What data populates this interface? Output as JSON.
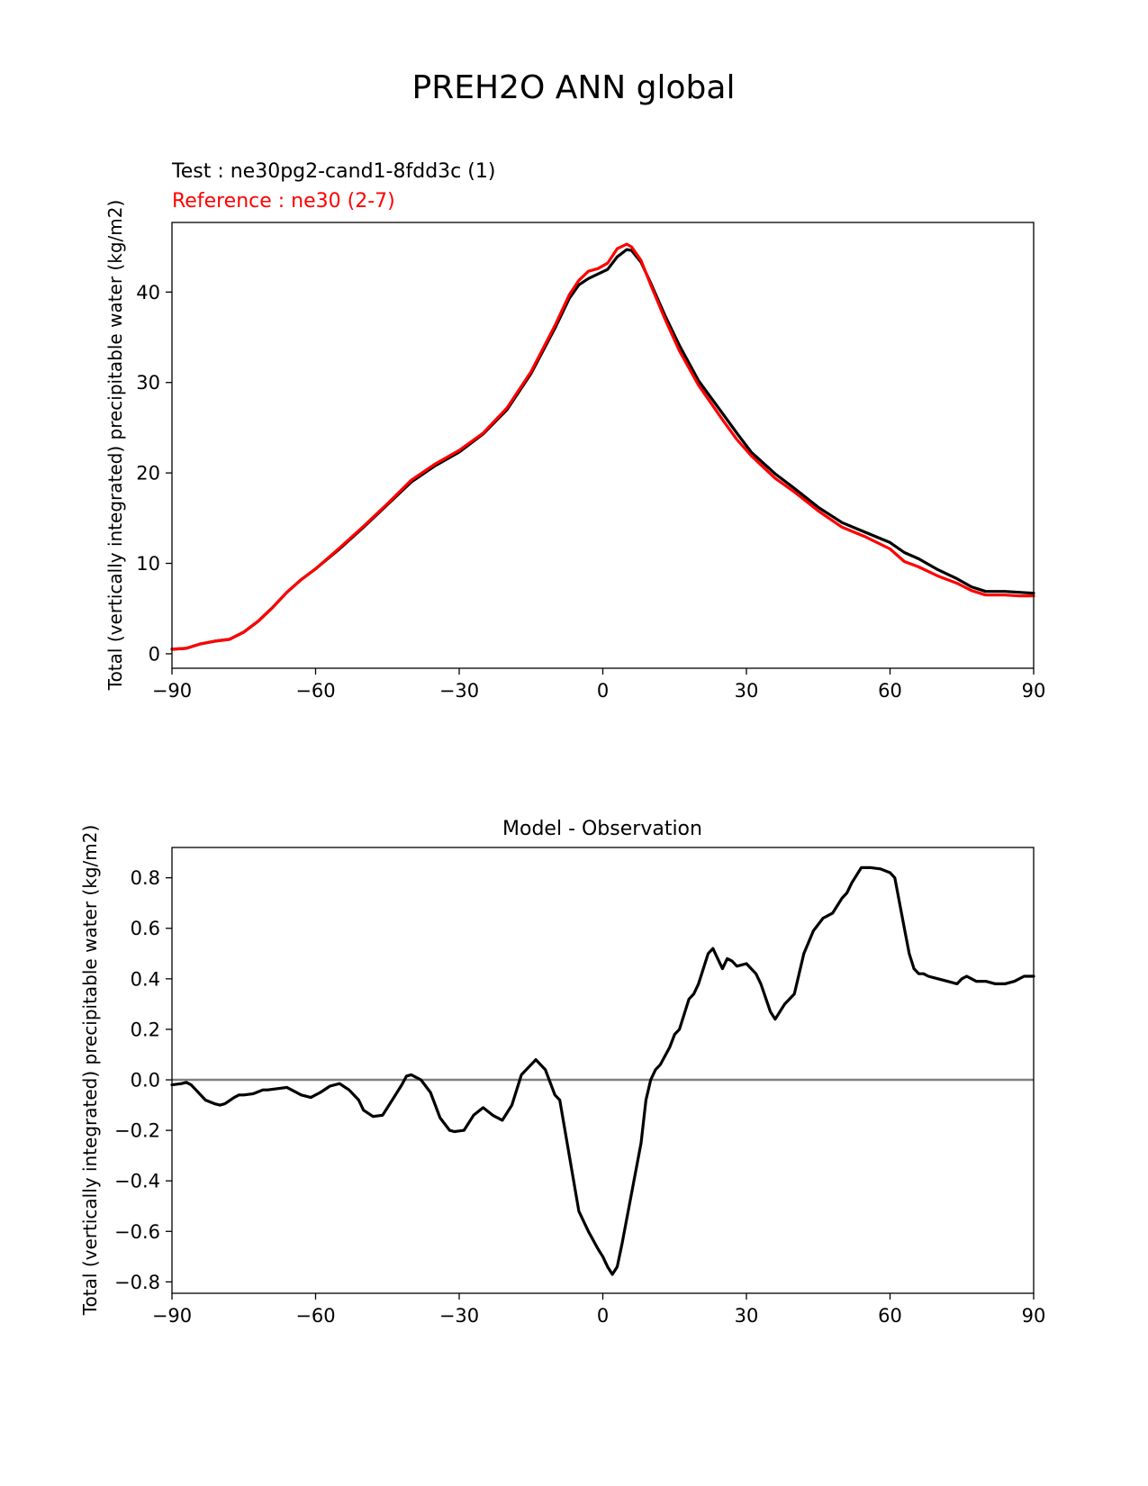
{
  "figure": {
    "suptitle": "PREH2O ANN global"
  },
  "chart_data": [
    {
      "type": "line",
      "title": "",
      "legend": {
        "test_label": "Test : ne30pg2-cand1-8fdd3c (1)",
        "ref_label": "Reference : ne30 (2-7)",
        "test_color": "#000000",
        "ref_color": "#ff0000"
      },
      "xlabel": "",
      "ylabel": "Total (vertically integrated) precipitable water (kg/m2)",
      "xlim": [
        -90,
        90
      ],
      "ylim": [
        -1.6,
        47.7
      ],
      "xticks": [
        -90,
        -60,
        -30,
        0,
        30,
        60,
        90
      ],
      "yticks": [
        0,
        10,
        20,
        30,
        40
      ],
      "xticklabels": [
        "−90",
        "−60",
        "−30",
        "0",
        "30",
        "60",
        "90"
      ],
      "yticklabels": [
        "0",
        "10",
        "20",
        "30",
        "40"
      ],
      "grid": false,
      "series": [
        {
          "name": "Test : ne30pg2-cand1-8fdd3c (1)",
          "color": "#000000",
          "x": [
            -90,
            -87,
            -84,
            -81,
            -78,
            -75,
            -72,
            -69,
            -66,
            -63,
            -60,
            -55,
            -50,
            -45,
            -40,
            -35,
            -30,
            -25,
            -20,
            -15,
            -10,
            -7,
            -5,
            -3,
            -1,
            1,
            3,
            5,
            6,
            8,
            10,
            13,
            16,
            20,
            25,
            28,
            31,
            36,
            40,
            45,
            50,
            55,
            60,
            63,
            66,
            70,
            74,
            77,
            80,
            84,
            87,
            90
          ],
          "values": [
            0.5,
            0.6,
            1.1,
            1.4,
            1.6,
            2.4,
            3.6,
            5.1,
            6.8,
            8.2,
            9.4,
            11.6,
            14.0,
            16.5,
            19.0,
            20.8,
            22.3,
            24.3,
            27.0,
            31.0,
            36.0,
            39.3,
            40.8,
            41.5,
            42.0,
            42.5,
            43.9,
            44.7,
            44.6,
            43.3,
            41.0,
            37.4,
            34.1,
            30.2,
            26.6,
            24.4,
            22.3,
            19.9,
            18.3,
            16.2,
            14.5,
            13.4,
            12.3,
            11.2,
            10.5,
            9.3,
            8.3,
            7.4,
            6.9,
            6.9,
            6.8,
            6.7
          ]
        },
        {
          "name": "Reference : ne30 (2-7)",
          "color": "#ff0000",
          "x": [
            -90,
            -87,
            -84,
            -81,
            -78,
            -75,
            -72,
            -69,
            -66,
            -63,
            -60,
            -55,
            -50,
            -45,
            -40,
            -35,
            -30,
            -25,
            -20,
            -15,
            -10,
            -7,
            -5,
            -3,
            -1,
            1,
            3,
            5,
            6,
            8,
            10,
            13,
            16,
            20,
            25,
            28,
            31,
            36,
            40,
            45,
            50,
            55,
            60,
            63,
            66,
            70,
            74,
            77,
            80,
            84,
            87,
            90
          ],
          "values": [
            0.5,
            0.6,
            1.1,
            1.4,
            1.6,
            2.4,
            3.6,
            5.1,
            6.8,
            8.2,
            9.4,
            11.7,
            14.1,
            16.6,
            19.2,
            21.0,
            22.5,
            24.4,
            27.2,
            31.2,
            36.3,
            39.7,
            41.3,
            42.3,
            42.6,
            43.2,
            44.8,
            45.3,
            45.0,
            43.5,
            40.8,
            37.0,
            33.5,
            29.7,
            25.9,
            23.7,
            21.9,
            19.4,
            17.9,
            15.8,
            14.0,
            12.9,
            11.6,
            10.2,
            9.6,
            8.6,
            7.8,
            7.0,
            6.5,
            6.5,
            6.4,
            6.4
          ]
        }
      ]
    },
    {
      "type": "line",
      "title": "Model - Observation",
      "xlabel": "",
      "ylabel": "Total (vertically integrated) precipitable water (kg/m2)",
      "xlim": [
        -90,
        90
      ],
      "ylim": [
        -0.845,
        0.92
      ],
      "xticks": [
        -90,
        -60,
        -30,
        0,
        30,
        60,
        90
      ],
      "yticks": [
        -0.8,
        -0.6,
        -0.4,
        -0.2,
        0.0,
        0.2,
        0.4,
        0.6,
        0.8
      ],
      "xticklabels": [
        "−90",
        "−60",
        "−30",
        "0",
        "30",
        "60",
        "90"
      ],
      "yticklabels": [
        "−0.8",
        "−0.6",
        "−0.4",
        "−0.2",
        "0.0",
        "0.2",
        "0.4",
        "0.6",
        "0.8"
      ],
      "grid": false,
      "zero_line_color": "#808080",
      "series": [
        {
          "name": "Model - Observation",
          "color": "#000000",
          "x": [
            -90,
            -88,
            -87,
            -86,
            -85,
            -83,
            -81,
            -80,
            -79,
            -77,
            -76,
            -75,
            -73,
            -71,
            -70,
            -68,
            -66,
            -65,
            -63,
            -61,
            -59,
            -57,
            -55,
            -53,
            -51,
            -50,
            -48,
            -46,
            -44,
            -42,
            -41,
            -40,
            -38,
            -36,
            -34,
            -32,
            -31,
            -29,
            -27,
            -25,
            -23,
            -21,
            -19,
            -17,
            -16,
            -15,
            -14,
            -12,
            -10,
            -9,
            -7,
            -5,
            -3,
            -1,
            0,
            1,
            2,
            3,
            4,
            6,
            8,
            9,
            10,
            11,
            12,
            14,
            15,
            16,
            18,
            19,
            20,
            22,
            23,
            24,
            25,
            26,
            27,
            28,
            30,
            31,
            32,
            33,
            35,
            36,
            38,
            40,
            41,
            42,
            44,
            46,
            47,
            48,
            50,
            51,
            52,
            54,
            56,
            58,
            60,
            61,
            62,
            63,
            64,
            65,
            66,
            67,
            68,
            70,
            72,
            74,
            75,
            76,
            78,
            80,
            82,
            84,
            86,
            88,
            90
          ],
          "values": [
            -0.02,
            -0.015,
            -0.01,
            -0.02,
            -0.04,
            -0.08,
            -0.095,
            -0.1,
            -0.095,
            -0.07,
            -0.06,
            -0.06,
            -0.055,
            -0.04,
            -0.04,
            -0.035,
            -0.03,
            -0.04,
            -0.06,
            -0.07,
            -0.05,
            -0.025,
            -0.015,
            -0.04,
            -0.08,
            -0.12,
            -0.145,
            -0.14,
            -0.08,
            -0.02,
            0.015,
            0.02,
            0.0,
            -0.05,
            -0.15,
            -0.2,
            -0.205,
            -0.2,
            -0.14,
            -0.11,
            -0.14,
            -0.16,
            -0.1,
            0.02,
            0.04,
            0.06,
            0.08,
            0.04,
            -0.06,
            -0.08,
            -0.3,
            -0.52,
            -0.6,
            -0.67,
            -0.7,
            -0.74,
            -0.77,
            -0.74,
            -0.65,
            -0.45,
            -0.25,
            -0.08,
            0.0,
            0.04,
            0.06,
            0.13,
            0.18,
            0.2,
            0.32,
            0.34,
            0.38,
            0.5,
            0.52,
            0.48,
            0.44,
            0.48,
            0.47,
            0.45,
            0.46,
            0.44,
            0.42,
            0.38,
            0.27,
            0.24,
            0.3,
            0.34,
            0.42,
            0.5,
            0.59,
            0.64,
            0.65,
            0.66,
            0.72,
            0.74,
            0.78,
            0.84,
            0.84,
            0.835,
            0.82,
            0.8,
            0.7,
            0.6,
            0.5,
            0.44,
            0.42,
            0.42,
            0.41,
            0.4,
            0.39,
            0.38,
            0.4,
            0.41,
            0.39,
            0.39,
            0.38,
            0.38,
            0.39,
            0.41,
            0.41
          ]
        }
      ]
    }
  ]
}
